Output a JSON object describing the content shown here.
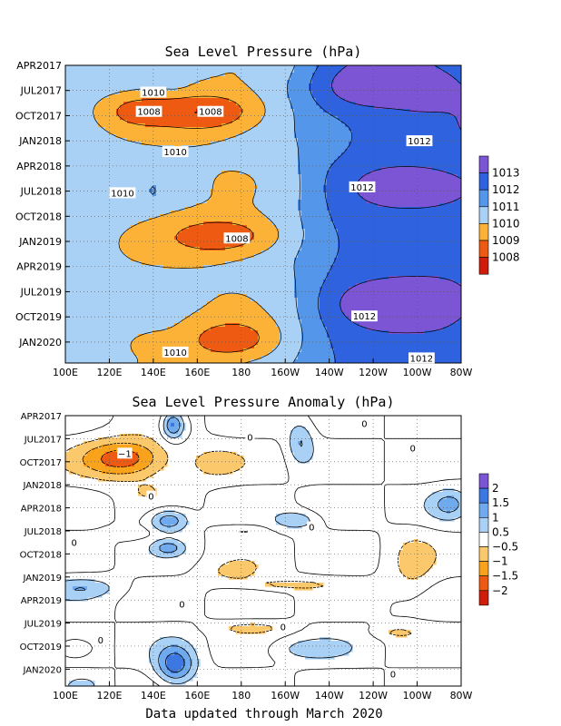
{
  "palette": {
    "p1008": "#d01c0a",
    "p1009": "#ee5a12",
    "p1010": "#fbb236",
    "p1011": "#a9d1f6",
    "p1012": "#5496ea",
    "p1013": "#2f62de",
    "p1014": "#7c55d4",
    "a_n2": "#d01c0a",
    "a_n15": "#ee5a12",
    "a_n1": "#f9a31c",
    "a_n05": "#fbc86b",
    "a_p05": "#a9d1f6",
    "a_p1": "#6fa9ee",
    "a_p15": "#3d78e2",
    "a_p2": "#7c55d4"
  },
  "footer": "Data updated through March 2020",
  "chart_data": [
    {
      "type": "heatmap",
      "title": "Sea Level Pressure (hPa)",
      "x_ticks": [
        "100E",
        "120E",
        "140E",
        "160E",
        "180",
        "160W",
        "140W",
        "120W",
        "100W",
        "80W"
      ],
      "y_ticks": [
        "APR2017",
        "JUL2017",
        "OCT2017",
        "JAN2018",
        "APR2018",
        "JUL2018",
        "OCT2018",
        "JAN2019",
        "APR2019",
        "JUL2019",
        "OCT2019",
        "JAN2020"
      ],
      "colorbar_levels": [
        "1013",
        "1012",
        "1011",
        "1010",
        "1009",
        "1008"
      ],
      "contour_labels": [
        {
          "text": "1010",
          "lon": 140,
          "time": 3.3
        },
        {
          "text": "1008",
          "lon": 138,
          "time": 5.6
        },
        {
          "text": "1008",
          "lon": 166,
          "time": 5.6
        },
        {
          "text": "1012",
          "lon": 261,
          "time": 9.1
        },
        {
          "text": "1010",
          "lon": 150,
          "time": 10.4
        },
        {
          "text": "1012",
          "lon": 235,
          "time": 14.6
        },
        {
          "text": "1010",
          "lon": 126,
          "time": 15.3
        },
        {
          "text": "1008",
          "lon": 178,
          "time": 20.7
        },
        {
          "text": "1012",
          "lon": 236,
          "time": 30.0
        },
        {
          "text": "1010",
          "lon": 150,
          "time": 34.3
        },
        {
          "text": "1012",
          "lon": 262,
          "time": 35.0
        }
      ]
    },
    {
      "type": "heatmap",
      "title": "Sea Level Pressure Anomaly (hPa)",
      "x_ticks": [
        "100E",
        "120E",
        "140E",
        "160E",
        "180",
        "160W",
        "140W",
        "120W",
        "100W",
        "80W"
      ],
      "y_ticks": [
        "APR2017",
        "JUL2017",
        "OCT2017",
        "JAN2018",
        "APR2018",
        "JUL2018",
        "OCT2018",
        "JAN2019",
        "APR2019",
        "JUL2019",
        "OCT2019",
        "JAN2020"
      ],
      "colorbar_levels": [
        "2",
        "1.5",
        "1",
        "0.5",
        "−0.5",
        "−1",
        "−1.5",
        "−2"
      ],
      "contour_labels": [
        {
          "text": "−1",
          "lon": 127,
          "time": 5.0
        },
        {
          "text": "0",
          "lon": 236,
          "time": 1.1
        },
        {
          "text": "0",
          "lon": 184,
          "time": 2.9
        },
        {
          "text": "0",
          "lon": 258,
          "time": 4.3
        },
        {
          "text": "0",
          "lon": 139,
          "time": 10.6
        },
        {
          "text": "0",
          "lon": 104,
          "time": 16.6
        },
        {
          "text": "0",
          "lon": 212,
          "time": 14.6
        },
        {
          "text": "0",
          "lon": 153,
          "time": 24.6
        },
        {
          "text": "0",
          "lon": 199,
          "time": 27.6
        },
        {
          "text": "0",
          "lon": 116,
          "time": 29.3
        },
        {
          "text": "0",
          "lon": 249,
          "time": 33.7
        }
      ]
    }
  ]
}
